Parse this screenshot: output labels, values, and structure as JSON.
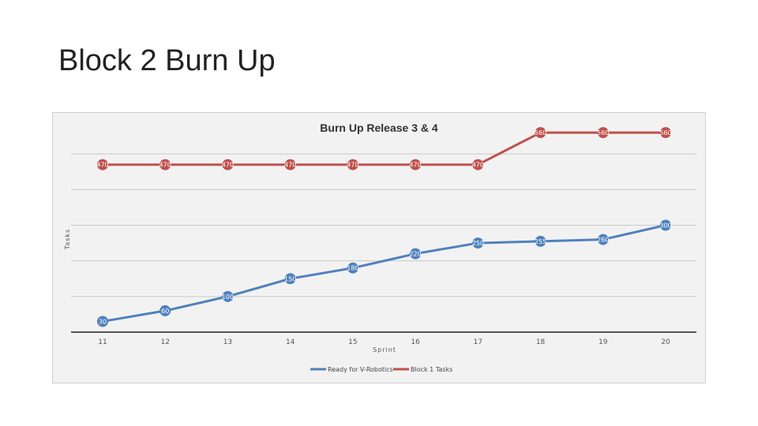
{
  "slide": {
    "title": "Block 2 Burn Up"
  },
  "chart_data": {
    "type": "line",
    "title": "Burn Up Release 3 & 4",
    "xlabel": "Sprint",
    "ylabel": "Tasks",
    "categories": [
      "11",
      "12",
      "13",
      "14",
      "15",
      "16",
      "17",
      "18",
      "19",
      "20"
    ],
    "ylim": [
      0,
      600
    ],
    "grid": true,
    "legend_position": "bottom",
    "series": [
      {
        "name": "Ready for V-Robotics",
        "color": "#4f81bd",
        "values": [
          30,
          60,
          100,
          150,
          180,
          220,
          250,
          255,
          260,
          300
        ]
      },
      {
        "name": "Block 1 Tasks",
        "color": "#c0504d",
        "values": [
          470,
          470,
          470,
          470,
          470,
          470,
          470,
          560,
          560,
          560
        ]
      }
    ]
  }
}
